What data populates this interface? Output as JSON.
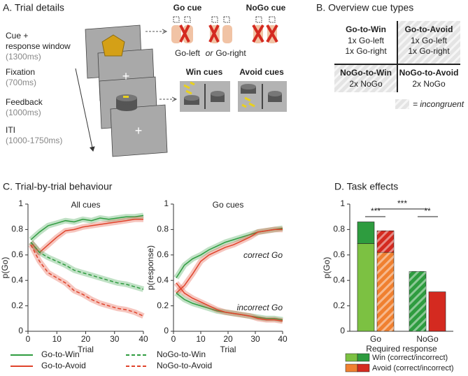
{
  "panel_a": {
    "title": "A. Trial details",
    "phases": [
      {
        "lines": [
          "Cue +",
          "response window"
        ],
        "duration": "(1300ms)"
      },
      {
        "lines": [
          "Fixation"
        ],
        "duration": "(700ms)"
      },
      {
        "lines": [
          "Feedback"
        ],
        "duration": "(1000ms)"
      },
      {
        "lines": [
          "ITI"
        ],
        "duration": "(1000-1750ms)"
      }
    ],
    "go_cue": "Go cue",
    "nogo_cue": "NoGo cue",
    "go_left": "Go-left",
    "or": "or",
    "go_right": "Go-right",
    "win_cues": "Win cues",
    "avoid_cues": "Avoid cues"
  },
  "panel_b": {
    "title": "B. Overview cue types",
    "cells": [
      {
        "title": "Go-to-Win",
        "lines": [
          "1x Go-left",
          "1x Go-right"
        ],
        "incongruent": false
      },
      {
        "title": "Go-to-Avoid",
        "lines": [
          "1x Go-left",
          "1x Go-right"
        ],
        "incongruent": true
      },
      {
        "title": "NoGo-to-Win",
        "lines": [
          "2x NoGo"
        ],
        "incongruent": true
      },
      {
        "title": "NoGo-to-Avoid",
        "lines": [
          "2x NoGo"
        ],
        "incongruent": false
      }
    ],
    "legend": "= incongruent"
  },
  "panel_c": {
    "title": "C. Trial-by-trial behaviour"
  },
  "panel_d": {
    "title": "D. Task effects"
  },
  "chart_data": [
    {
      "type": "line",
      "title": "All cues",
      "ylabel": "p(Go)",
      "xlabel": "Trial",
      "x": [
        1,
        4,
        7,
        10,
        13,
        16,
        19,
        22,
        25,
        28,
        31,
        34,
        37,
        40
      ],
      "xlim": [
        0,
        40
      ],
      "xticks": [
        0,
        10,
        20,
        30,
        40
      ],
      "ylim": [
        0,
        1
      ],
      "yticks": [
        0,
        0.2,
        0.4,
        0.6,
        0.8,
        1
      ],
      "series": [
        {
          "name": "Go-to-Win",
          "color": "#2e9c3f",
          "dashed": false,
          "values": [
            0.72,
            0.78,
            0.83,
            0.85,
            0.87,
            0.86,
            0.88,
            0.87,
            0.89,
            0.88,
            0.89,
            0.9,
            0.9,
            0.91
          ]
        },
        {
          "name": "Go-to-Avoid",
          "color": "#e0432b",
          "dashed": false,
          "values": [
            0.7,
            0.62,
            0.68,
            0.74,
            0.79,
            0.8,
            0.82,
            0.83,
            0.84,
            0.85,
            0.86,
            0.87,
            0.88,
            0.88
          ]
        },
        {
          "name": "NoGo-to-Win",
          "color": "#2e9c3f",
          "dashed": true,
          "values": [
            0.7,
            0.62,
            0.58,
            0.55,
            0.52,
            0.48,
            0.46,
            0.44,
            0.42,
            0.4,
            0.38,
            0.37,
            0.35,
            0.33
          ]
        },
        {
          "name": "NoGo-to-Avoid",
          "color": "#e0432b",
          "dashed": true,
          "values": [
            0.68,
            0.55,
            0.46,
            0.42,
            0.38,
            0.32,
            0.29,
            0.25,
            0.22,
            0.2,
            0.18,
            0.17,
            0.15,
            0.12
          ]
        }
      ]
    },
    {
      "type": "line",
      "title": "Go cues",
      "ylabel": "p(response)",
      "xlabel": "Trial",
      "x": [
        1,
        4,
        7,
        10,
        13,
        16,
        19,
        22,
        25,
        28,
        31,
        34,
        37,
        40
      ],
      "xlim": [
        0,
        40
      ],
      "xticks": [
        0,
        10,
        20,
        30,
        40
      ],
      "ylim": [
        0,
        1
      ],
      "yticks": [
        0,
        0.2,
        0.4,
        0.6,
        0.8,
        1
      ],
      "annotations": [
        "correct Go",
        "incorrect Go"
      ],
      "series": [
        {
          "color": "#2e9c3f",
          "dashed": false,
          "values": [
            0.42,
            0.52,
            0.57,
            0.6,
            0.64,
            0.67,
            0.7,
            0.72,
            0.74,
            0.76,
            0.78,
            0.79,
            0.8,
            0.81
          ]
        },
        {
          "color": "#e0432b",
          "dashed": false,
          "values": [
            0.3,
            0.36,
            0.45,
            0.55,
            0.6,
            0.63,
            0.66,
            0.68,
            0.71,
            0.74,
            0.78,
            0.79,
            0.8,
            0.8
          ]
        },
        {
          "color": "#2e9c3f",
          "dashed": false,
          "values": [
            0.3,
            0.25,
            0.22,
            0.2,
            0.18,
            0.16,
            0.15,
            0.14,
            0.13,
            0.12,
            0.11,
            0.1,
            0.1,
            0.09
          ]
        },
        {
          "color": "#e0432b",
          "dashed": false,
          "values": [
            0.38,
            0.3,
            0.26,
            0.23,
            0.2,
            0.17,
            0.15,
            0.14,
            0.13,
            0.12,
            0.1,
            0.09,
            0.09,
            0.08
          ]
        }
      ]
    },
    {
      "type": "stacked_bar",
      "ylabel": "p(Go)",
      "xlabel": "Required response",
      "categories": [
        "Go",
        "NoGo"
      ],
      "ylim": [
        0,
        1
      ],
      "yticks": [
        0,
        0.2,
        0.4,
        0.6,
        0.8,
        1
      ],
      "significance": [
        "***",
        "***",
        "**"
      ],
      "series": [
        {
          "name": "Win (correct/incorrect)",
          "color_correct": "#7cc142",
          "color_incorrect": "#2e9c3f",
          "correct": [
            0.69,
            null
          ],
          "incorrect": [
            0.17,
            0.47
          ],
          "hatched": [
            false,
            true
          ]
        },
        {
          "name": "Avoid (correct/incorrect)",
          "color_correct": "#f08030",
          "color_incorrect": "#d42a20",
          "correct": [
            0.62,
            null
          ],
          "incorrect": [
            0.17,
            0.31
          ],
          "hatched": [
            true,
            false
          ]
        }
      ]
    }
  ]
}
